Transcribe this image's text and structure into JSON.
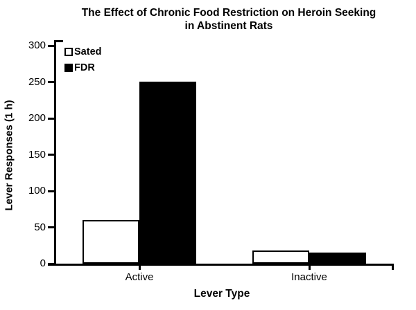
{
  "figure": {
    "title_line1": "The Effect of Chronic Food Restriction on Heroin Seeking",
    "title_line2": "in Abstinent Rats"
  },
  "chart_data": {
    "type": "bar",
    "title": "The Effect of Chronic Food Restriction on Heroin Seeking in Abstinent Rats",
    "categories": [
      "Active",
      "Inactive"
    ],
    "series": [
      {
        "name": "Sated",
        "fill": "#ffffff",
        "values": [
          60,
          18
        ]
      },
      {
        "name": "FDR",
        "fill": "#000000",
        "values": [
          250,
          15
        ]
      }
    ],
    "xlabel": "Lever Type",
    "ylabel": "Lever Responses (1 h)",
    "ylim": [
      0,
      300
    ],
    "yticks": [
      0,
      50,
      100,
      150,
      200,
      250,
      300
    ],
    "legend_position": "top-left-inside",
    "grid": false,
    "colors": {
      "foreground": "#000000",
      "background": "#ffffff"
    }
  }
}
